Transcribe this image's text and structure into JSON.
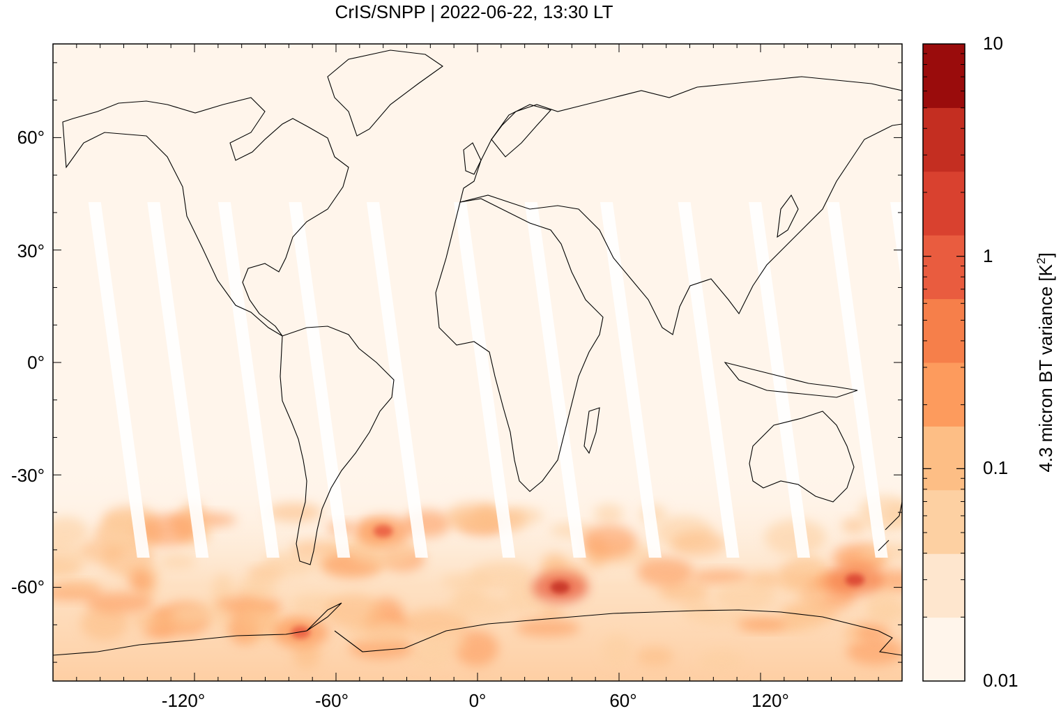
{
  "title": "CrIS/SNPP | 2022-06-22, 13:30 LT",
  "map": {
    "projection": "equirectangular",
    "lon_range": [
      -180,
      180
    ],
    "lat_range": [
      -85,
      85
    ],
    "features": [
      "coastlines",
      "satellite swath gaps (white)"
    ],
    "x_ticks": [
      "-120°",
      "-60°",
      "0°",
      "60°",
      "120°"
    ],
    "y_ticks": [
      "60°",
      "30°",
      "0°",
      "-30°",
      "-60°"
    ]
  },
  "colorbar": {
    "label_main": "4.3 micron BT variance [K",
    "label_sup": "2",
    "label_end": "]",
    "ticks": [
      "10",
      "1",
      "0.1",
      "0.01"
    ],
    "scale": "log",
    "range": [
      0.01,
      10
    ],
    "colors": [
      "#fff5eb",
      "#fee6ce",
      "#fdd0a2",
      "#fdbe85",
      "#fd9b5d",
      "#f67f4a",
      "#e95c3f",
      "#d9412f",
      "#c42e21",
      "#9a0c0c"
    ]
  },
  "field_highlights": [
    {
      "lon": 35,
      "lat": -60,
      "level": 8
    },
    {
      "lon": -75,
      "lat": -72,
      "level": 6
    },
    {
      "lon": 160,
      "lat": -58,
      "level": 7
    },
    {
      "lon": -40,
      "lat": -45,
      "level": 6
    }
  ]
}
